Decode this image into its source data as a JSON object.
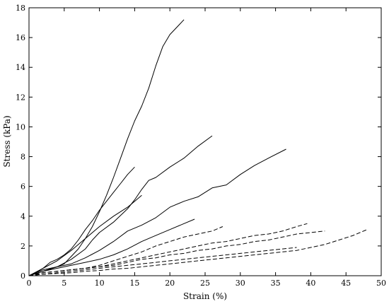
{
  "chart_data": {
    "type": "line",
    "title": "",
    "xlabel": "Strain (%)",
    "ylabel": "Stress (kPa)",
    "xlim": [
      0,
      50
    ],
    "ylim": [
      0,
      18
    ],
    "xticks": [
      0,
      5,
      10,
      15,
      20,
      25,
      30,
      35,
      40,
      45,
      50
    ],
    "yticks": [
      0,
      2,
      4,
      6,
      8,
      10,
      12,
      14,
      16,
      18
    ],
    "grid": false,
    "legend": "none",
    "line_color": "#000000",
    "series": [
      {
        "style": "solid",
        "x": [
          0,
          1,
          2,
          3,
          4,
          5,
          6,
          7,
          8,
          9,
          10,
          11,
          12,
          13,
          14,
          15,
          16,
          17,
          18,
          19,
          20,
          21,
          22
        ],
        "y": [
          0,
          0.2,
          0.4,
          0.5,
          0.6,
          0.8,
          1.3,
          1.8,
          2.5,
          3.3,
          4.3,
          5.4,
          6.6,
          7.9,
          9.2,
          10.4,
          11.4,
          12.6,
          14.1,
          15.4,
          16.2,
          16.7,
          17.2
        ]
      },
      {
        "style": "solid",
        "x": [
          0,
          1,
          2,
          3,
          4,
          5,
          6,
          7,
          8,
          9,
          10,
          11,
          12,
          13,
          14,
          15
        ],
        "y": [
          0,
          0.2,
          0.5,
          0.9,
          1.1,
          1.4,
          1.8,
          2.4,
          3.1,
          3.7,
          4.4,
          5.0,
          5.6,
          6.2,
          6.8,
          7.3
        ]
      },
      {
        "style": "solid",
        "x": [
          0,
          2,
          4,
          6,
          8,
          9,
          10,
          12,
          14,
          15,
          16,
          17,
          18,
          20,
          22,
          24,
          26
        ],
        "y": [
          0,
          0.3,
          0.6,
          1.1,
          1.8,
          2.4,
          2.9,
          3.6,
          4.5,
          5.1,
          5.8,
          6.4,
          6.6,
          7.3,
          7.9,
          8.7,
          9.4
        ]
      },
      {
        "style": "solid",
        "x": [
          0,
          2,
          4,
          6,
          8,
          10,
          12,
          14,
          15,
          16
        ],
        "y": [
          0,
          0.5,
          1.0,
          1.7,
          2.5,
          3.3,
          4.0,
          4.6,
          5.0,
          5.4
        ]
      },
      {
        "style": "solid",
        "x": [
          0,
          2,
          4,
          6,
          8,
          10,
          12,
          14,
          16,
          18,
          20,
          22,
          24,
          26,
          28,
          30,
          32,
          34,
          36.5
        ],
        "y": [
          0,
          0.3,
          0.6,
          0.8,
          1.2,
          1.7,
          2.3,
          3.0,
          3.4,
          3.9,
          4.6,
          5.0,
          5.3,
          5.9,
          6.1,
          6.8,
          7.4,
          7.9,
          8.5
        ]
      },
      {
        "style": "solid",
        "x": [
          0,
          2,
          4,
          6,
          8,
          10,
          12,
          14,
          16,
          18,
          20,
          22,
          23.5
        ],
        "y": [
          0,
          0.3,
          0.5,
          0.7,
          0.9,
          1.1,
          1.4,
          1.8,
          2.3,
          2.7,
          3.1,
          3.5,
          3.8
        ]
      },
      {
        "style": "dashed",
        "x": [
          0,
          2,
          4,
          6,
          8,
          10,
          12,
          14,
          16,
          18,
          20,
          22,
          24,
          26,
          27.5
        ],
        "y": [
          0,
          0.2,
          0.3,
          0.4,
          0.5,
          0.7,
          1.0,
          1.3,
          1.6,
          2.0,
          2.3,
          2.6,
          2.8,
          3.0,
          3.3
        ]
      },
      {
        "style": "dashed",
        "x": [
          0,
          2,
          4,
          6,
          8,
          10,
          12,
          14,
          16,
          18,
          20,
          22,
          24,
          26,
          28,
          30,
          32,
          34,
          36,
          38,
          39.5
        ],
        "y": [
          0,
          0.2,
          0.3,
          0.4,
          0.5,
          0.6,
          0.8,
          1.0,
          1.2,
          1.4,
          1.6,
          1.8,
          2.0,
          2.2,
          2.3,
          2.5,
          2.7,
          2.8,
          3.0,
          3.3,
          3.5
        ]
      },
      {
        "style": "dashed",
        "x": [
          0,
          2,
          4,
          6,
          8,
          10,
          12,
          14,
          16,
          18,
          20,
          22,
          24,
          26,
          28,
          30,
          32,
          34,
          36,
          38,
          40,
          42
        ],
        "y": [
          0,
          0.2,
          0.3,
          0.4,
          0.5,
          0.6,
          0.7,
          0.9,
          1.1,
          1.2,
          1.4,
          1.5,
          1.7,
          1.8,
          2.0,
          2.1,
          2.3,
          2.4,
          2.6,
          2.8,
          2.9,
          3.0
        ]
      },
      {
        "style": "dashed",
        "x": [
          0,
          2,
          4,
          6,
          8,
          10,
          12,
          14,
          16,
          18,
          20,
          22,
          24,
          26,
          28,
          30,
          32,
          34,
          36,
          38
        ],
        "y": [
          0,
          0.1,
          0.2,
          0.3,
          0.4,
          0.5,
          0.6,
          0.7,
          0.8,
          0.9,
          1.0,
          1.1,
          1.2,
          1.3,
          1.4,
          1.5,
          1.6,
          1.7,
          1.8,
          1.9
        ]
      },
      {
        "style": "dashed",
        "x": [
          0,
          2,
          4,
          6,
          8,
          10,
          12,
          14,
          16,
          18,
          20,
          22,
          24,
          26,
          28,
          30,
          32,
          34,
          36,
          38,
          40,
          42,
          44,
          46,
          48
        ],
        "y": [
          0,
          0.1,
          0.15,
          0.2,
          0.3,
          0.35,
          0.45,
          0.5,
          0.6,
          0.7,
          0.8,
          0.9,
          1.0,
          1.1,
          1.2,
          1.3,
          1.4,
          1.5,
          1.6,
          1.7,
          1.9,
          2.1,
          2.4,
          2.7,
          3.1
        ]
      }
    ]
  }
}
